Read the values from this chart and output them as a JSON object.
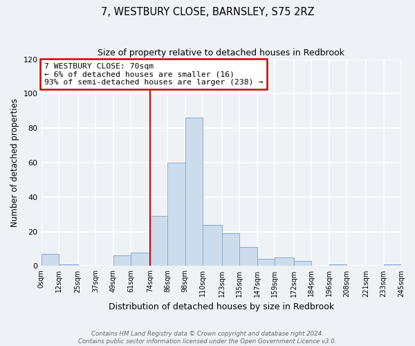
{
  "title": "7, WESTBURY CLOSE, BARNSLEY, S75 2RZ",
  "subtitle": "Size of property relative to detached houses in Redbrook",
  "xlabel": "Distribution of detached houses by size in Redbrook",
  "ylabel": "Number of detached properties",
  "bar_color": "#ccdcec",
  "bar_edge_color": "#88aacc",
  "bin_edges": [
    0,
    12,
    25,
    37,
    49,
    61,
    74,
    86,
    98,
    110,
    123,
    135,
    147,
    159,
    172,
    184,
    196,
    208,
    221,
    233,
    245
  ],
  "bin_labels": [
    "0sqm",
    "12sqm",
    "25sqm",
    "37sqm",
    "49sqm",
    "61sqm",
    "74sqm",
    "86sqm",
    "98sqm",
    "110sqm",
    "123sqm",
    "135sqm",
    "147sqm",
    "159sqm",
    "172sqm",
    "184sqm",
    "196sqm",
    "208sqm",
    "221sqm",
    "233sqm",
    "245sqm"
  ],
  "counts": [
    7,
    1,
    0,
    0,
    6,
    8,
    29,
    60,
    86,
    24,
    19,
    11,
    4,
    5,
    3,
    0,
    1,
    0,
    0,
    1
  ],
  "ylim": [
    0,
    120
  ],
  "yticks": [
    0,
    20,
    40,
    60,
    80,
    100,
    120
  ],
  "vline_x": 74,
  "annotation_text": "7 WESTBURY CLOSE: 70sqm\n← 6% of detached houses are smaller (16)\n93% of semi-detached houses are larger (238) →",
  "annotation_box_color": "#ffffff",
  "annotation_box_edge_color": "#cc0000",
  "footer_text": "Contains HM Land Registry data © Crown copyright and database right 2024.\nContains public sector information licensed under the Open Government Licence v3.0.",
  "background_color": "#eef2f7",
  "grid_color": "#ffffff",
  "vline_color": "#cc0000"
}
